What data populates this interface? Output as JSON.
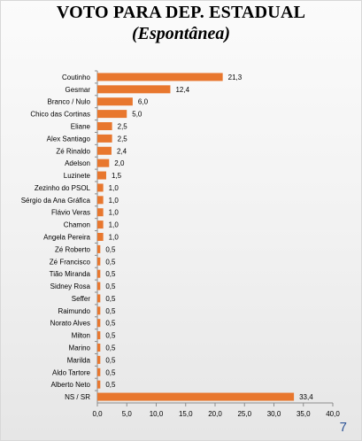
{
  "title_line1": "VOTO  PARA DEP. ESTADUAL",
  "title_line2": "(Espontânea)",
  "page_number": "7",
  "colors": {
    "bar": "#e8772e",
    "text": "#000000",
    "axis": "#8c8c8c",
    "page_number": "#2f5597"
  },
  "chart_data": {
    "type": "bar",
    "orientation": "horizontal",
    "categories": [
      "Coutinho",
      "Gesmar",
      "Branco / Nulo",
      "Chico das Cortinas",
      "Eliane",
      "Alex Santiago",
      "Zé Rinaldo",
      "Adelson",
      "Luzinete",
      "Zezinho do PSOL",
      "Sérgio da Ana Gráfica",
      "Flávio Veras",
      "Chamon",
      "Angela Pereira",
      "Zé Roberto",
      "Zé Francisco",
      "Tião Miranda",
      "Sidney Rosa",
      "Seffer",
      "Raimundo",
      "Norato Alves",
      "Milton",
      "Marino",
      "Marilda",
      "Aldo Tartore",
      "Alberto Neto",
      "NS / SR"
    ],
    "values": [
      21.3,
      12.4,
      6.0,
      5.0,
      2.5,
      2.5,
      2.4,
      2.0,
      1.5,
      1.0,
      1.0,
      1.0,
      1.0,
      1.0,
      0.5,
      0.5,
      0.5,
      0.5,
      0.5,
      0.5,
      0.5,
      0.5,
      0.5,
      0.5,
      0.5,
      0.5,
      33.4
    ],
    "value_labels": [
      "21,3",
      "12,4",
      "6,0",
      "5,0",
      "2,5",
      "2,5",
      "2,4",
      "2,0",
      "1,5",
      "1,0",
      "1,0",
      "1,0",
      "1,0",
      "1,0",
      "0,5",
      "0,5",
      "0,5",
      "0,5",
      "0,5",
      "0,5",
      "0,5",
      "0,5",
      "0,5",
      "0,5",
      "0,5",
      "0,5",
      "33,4"
    ],
    "xlim": [
      0,
      40
    ],
    "x_ticks": [
      "0,0",
      "5,0",
      "10,0",
      "15,0",
      "20,0",
      "25,0",
      "30,0",
      "35,0",
      "40,0"
    ],
    "grid": false,
    "legend": "none"
  }
}
